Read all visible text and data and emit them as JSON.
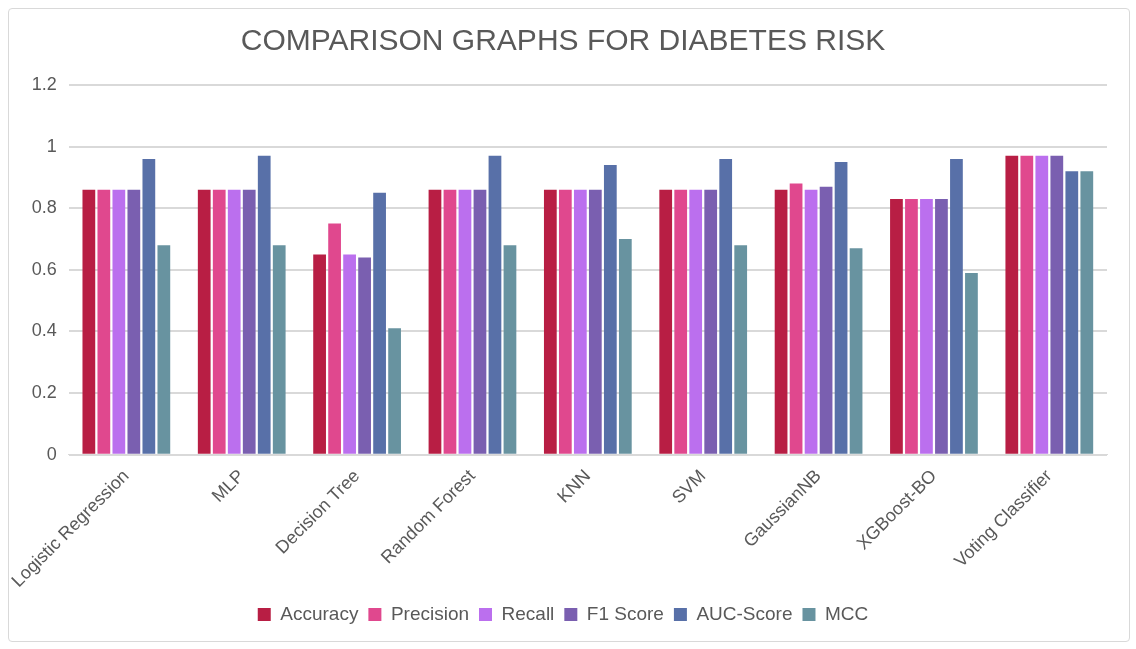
{
  "chart_data": {
    "type": "bar",
    "title": "COMPARISON GRAPHS FOR DIABETES RISK",
    "categories": [
      "Logistic Regression",
      "MLP",
      "Decision Tree",
      "Random Forest",
      "KNN",
      "SVM",
      "GaussianNB",
      "XGBoost-BO",
      "Voting Classifier"
    ],
    "series": [
      {
        "name": "Accuracy",
        "color": "#b81e44",
        "values": [
          0.86,
          0.86,
          0.65,
          0.86,
          0.86,
          0.86,
          0.86,
          0.83,
          0.97
        ]
      },
      {
        "name": "Precision",
        "color": "#e0488e",
        "values": [
          0.86,
          0.86,
          0.75,
          0.86,
          0.86,
          0.86,
          0.88,
          0.83,
          0.97
        ]
      },
      {
        "name": "Recall",
        "color": "#bb6fee",
        "values": [
          0.86,
          0.86,
          0.65,
          0.86,
          0.86,
          0.86,
          0.86,
          0.83,
          0.97
        ]
      },
      {
        "name": "F1 Score",
        "color": "#7a5fb0",
        "values": [
          0.86,
          0.86,
          0.64,
          0.86,
          0.86,
          0.86,
          0.87,
          0.83,
          0.97
        ]
      },
      {
        "name": "AUC-Score",
        "color": "#5870a8",
        "values": [
          0.96,
          0.97,
          0.85,
          0.97,
          0.94,
          0.96,
          0.95,
          0.96,
          0.92
        ]
      },
      {
        "name": "MCC",
        "color": "#6893a0",
        "values": [
          0.68,
          0.68,
          0.41,
          0.68,
          0.7,
          0.68,
          0.67,
          0.59,
          0.92
        ]
      }
    ],
    "ylim": [
      0,
      1.2
    ],
    "yticks": [
      0,
      0.2,
      0.4,
      0.6,
      0.8,
      {
        "value": 1,
        "label": "1"
      },
      1.2
    ],
    "grid": "y",
    "legend": "bottom"
  }
}
